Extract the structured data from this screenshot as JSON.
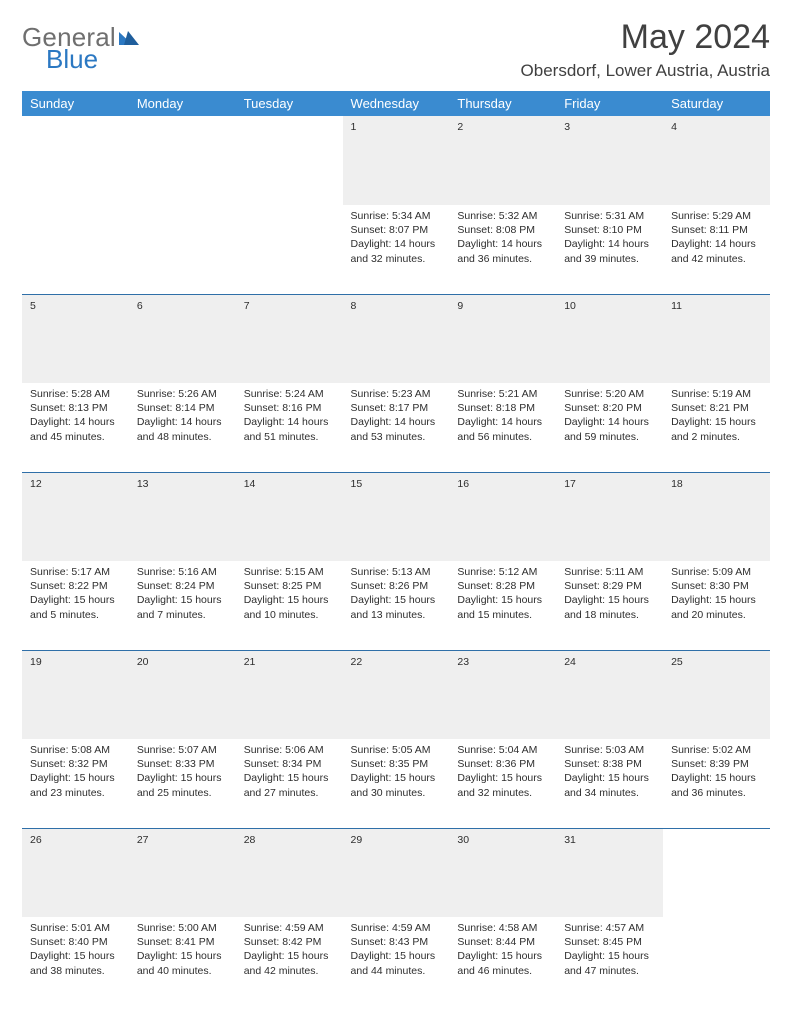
{
  "brand": {
    "line1": "General",
    "line2": "Blue",
    "accent_color": "#2b78c2",
    "text_color": "#6f6f6f"
  },
  "header": {
    "title": "May 2024",
    "location": "Obersdorf, Lower Austria, Austria"
  },
  "theme": {
    "header_bg": "#3a8bd0",
    "header_text": "#ffffff",
    "daynum_bg": "#efefef",
    "daynum_border": "#2f6fa8",
    "body_text": "#2e2e2e"
  },
  "weekdays": [
    "Sunday",
    "Monday",
    "Tuesday",
    "Wednesday",
    "Thursday",
    "Friday",
    "Saturday"
  ],
  "weeks": [
    [
      null,
      null,
      null,
      {
        "d": "1",
        "sr": "5:34 AM",
        "ss": "8:07 PM",
        "dl": "14 hours and 32 minutes."
      },
      {
        "d": "2",
        "sr": "5:32 AM",
        "ss": "8:08 PM",
        "dl": "14 hours and 36 minutes."
      },
      {
        "d": "3",
        "sr": "5:31 AM",
        "ss": "8:10 PM",
        "dl": "14 hours and 39 minutes."
      },
      {
        "d": "4",
        "sr": "5:29 AM",
        "ss": "8:11 PM",
        "dl": "14 hours and 42 minutes."
      }
    ],
    [
      {
        "d": "5",
        "sr": "5:28 AM",
        "ss": "8:13 PM",
        "dl": "14 hours and 45 minutes."
      },
      {
        "d": "6",
        "sr": "5:26 AM",
        "ss": "8:14 PM",
        "dl": "14 hours and 48 minutes."
      },
      {
        "d": "7",
        "sr": "5:24 AM",
        "ss": "8:16 PM",
        "dl": "14 hours and 51 minutes."
      },
      {
        "d": "8",
        "sr": "5:23 AM",
        "ss": "8:17 PM",
        "dl": "14 hours and 53 minutes."
      },
      {
        "d": "9",
        "sr": "5:21 AM",
        "ss": "8:18 PM",
        "dl": "14 hours and 56 minutes."
      },
      {
        "d": "10",
        "sr": "5:20 AM",
        "ss": "8:20 PM",
        "dl": "14 hours and 59 minutes."
      },
      {
        "d": "11",
        "sr": "5:19 AM",
        "ss": "8:21 PM",
        "dl": "15 hours and 2 minutes."
      }
    ],
    [
      {
        "d": "12",
        "sr": "5:17 AM",
        "ss": "8:22 PM",
        "dl": "15 hours and 5 minutes."
      },
      {
        "d": "13",
        "sr": "5:16 AM",
        "ss": "8:24 PM",
        "dl": "15 hours and 7 minutes."
      },
      {
        "d": "14",
        "sr": "5:15 AM",
        "ss": "8:25 PM",
        "dl": "15 hours and 10 minutes."
      },
      {
        "d": "15",
        "sr": "5:13 AM",
        "ss": "8:26 PM",
        "dl": "15 hours and 13 minutes."
      },
      {
        "d": "16",
        "sr": "5:12 AM",
        "ss": "8:28 PM",
        "dl": "15 hours and 15 minutes."
      },
      {
        "d": "17",
        "sr": "5:11 AM",
        "ss": "8:29 PM",
        "dl": "15 hours and 18 minutes."
      },
      {
        "d": "18",
        "sr": "5:09 AM",
        "ss": "8:30 PM",
        "dl": "15 hours and 20 minutes."
      }
    ],
    [
      {
        "d": "19",
        "sr": "5:08 AM",
        "ss": "8:32 PM",
        "dl": "15 hours and 23 minutes."
      },
      {
        "d": "20",
        "sr": "5:07 AM",
        "ss": "8:33 PM",
        "dl": "15 hours and 25 minutes."
      },
      {
        "d": "21",
        "sr": "5:06 AM",
        "ss": "8:34 PM",
        "dl": "15 hours and 27 minutes."
      },
      {
        "d": "22",
        "sr": "5:05 AM",
        "ss": "8:35 PM",
        "dl": "15 hours and 30 minutes."
      },
      {
        "d": "23",
        "sr": "5:04 AM",
        "ss": "8:36 PM",
        "dl": "15 hours and 32 minutes."
      },
      {
        "d": "24",
        "sr": "5:03 AM",
        "ss": "8:38 PM",
        "dl": "15 hours and 34 minutes."
      },
      {
        "d": "25",
        "sr": "5:02 AM",
        "ss": "8:39 PM",
        "dl": "15 hours and 36 minutes."
      }
    ],
    [
      {
        "d": "26",
        "sr": "5:01 AM",
        "ss": "8:40 PM",
        "dl": "15 hours and 38 minutes."
      },
      {
        "d": "27",
        "sr": "5:00 AM",
        "ss": "8:41 PM",
        "dl": "15 hours and 40 minutes."
      },
      {
        "d": "28",
        "sr": "4:59 AM",
        "ss": "8:42 PM",
        "dl": "15 hours and 42 minutes."
      },
      {
        "d": "29",
        "sr": "4:59 AM",
        "ss": "8:43 PM",
        "dl": "15 hours and 44 minutes."
      },
      {
        "d": "30",
        "sr": "4:58 AM",
        "ss": "8:44 PM",
        "dl": "15 hours and 46 minutes."
      },
      {
        "d": "31",
        "sr": "4:57 AM",
        "ss": "8:45 PM",
        "dl": "15 hours and 47 minutes."
      },
      null
    ]
  ],
  "labels": {
    "sunrise": "Sunrise:",
    "sunset": "Sunset:",
    "daylight": "Daylight:"
  }
}
